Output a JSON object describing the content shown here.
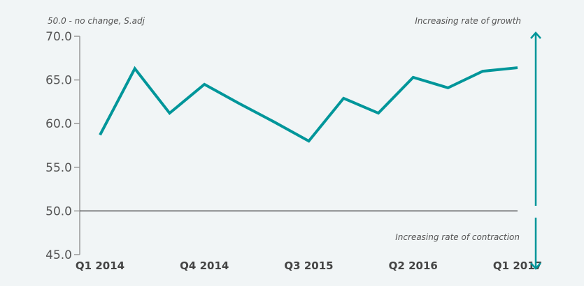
{
  "chart_data": {
    "type": "line",
    "title": "",
    "subtitle": "50.0 - no change, S.adj",
    "xlabel": "",
    "ylabel": "",
    "ylim": [
      45,
      70
    ],
    "yticks": [
      "70.0",
      "65.0",
      "60.0",
      "55.0",
      "50.0",
      "45.0"
    ],
    "ytick_values": [
      70,
      65,
      60,
      55,
      50,
      45
    ],
    "x": [
      "Q1 2014",
      "Q2 2014",
      "Q3 2014",
      "Q4 2014",
      "Q1 2015",
      "Q2 2015",
      "Q3 2015",
      "Q4 2015",
      "Q1 2016",
      "Q2 2016",
      "Q3 2016",
      "Q4 2016",
      "Q1 2017"
    ],
    "xtick_labels": [
      "Q1 2014",
      "Q4 2014",
      "Q3 2015",
      "Q2 2016",
      "Q1 2017"
    ],
    "xtick_index": [
      0,
      3,
      6,
      9,
      12
    ],
    "series": [
      {
        "values": [
          58.7,
          66.3,
          61.2,
          64.5,
          62.3,
          60.2,
          58.0,
          62.9,
          61.2,
          65.3,
          64.1,
          66.0,
          66.4
        ],
        "color": "#00969a"
      }
    ],
    "reference_line": 50,
    "annotations": {
      "growth": "Increasing rate of growth",
      "contraction": "Increasing rate of contraction"
    },
    "arrow_color": "#00969a",
    "grid": false
  }
}
